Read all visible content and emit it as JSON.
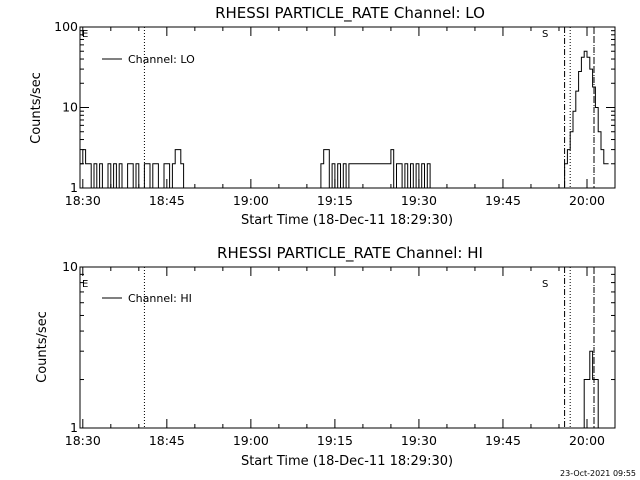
{
  "timestamp": "23-Oct-2021 09:55",
  "chart_data": [
    {
      "type": "line",
      "title": "RHESSI PARTICLE_RATE Channel: LO",
      "xlabel": "Start Time (18-Dec-11 18:29:30)",
      "ylabel": "Counts/sec",
      "y_scale": "log",
      "ylim": [
        1,
        100
      ],
      "yticks": [
        {
          "v": 1,
          "label": "1"
        },
        {
          "v": 10,
          "label": "10"
        },
        {
          "v": 100,
          "label": "100"
        }
      ],
      "xlim": [
        "18:29:30",
        "20:05:00"
      ],
      "xticks": [
        "18:30",
        "18:45",
        "19:00",
        "19:15",
        "19:30",
        "19:45",
        "20:00"
      ],
      "legend": "Channel: LO",
      "legend_position": "top-left",
      "left_marker": "E",
      "right_marker": "S",
      "vlines": [
        {
          "x": "18:41:00",
          "style": "dotted"
        },
        {
          "x": "19:56:00",
          "style": "dashdot"
        },
        {
          "x": "19:57:00",
          "style": "dotted"
        },
        {
          "x": "20:02:30",
          "style": "dashed"
        },
        {
          "x": "20:05:00",
          "style": "dotted"
        }
      ],
      "series": [
        {
          "x": [
            "18:29:30",
            "18:30:00",
            "18:30:30",
            "18:31:00",
            "18:31:30",
            "18:32:00",
            "18:32:30",
            "18:33:00",
            "18:33:30",
            "18:34:00",
            "18:34:30",
            "18:35:00",
            "18:35:30",
            "18:36:00",
            "18:36:30",
            "18:37:00",
            "18:37:30",
            "18:38:00",
            "18:38:30",
            "18:39:00",
            "18:39:30",
            "18:40:00",
            "18:40:30",
            "18:41:00",
            "18:41:30",
            "18:42:00",
            "18:42:30",
            "18:43:00",
            "18:43:30",
            "18:44:00",
            "18:44:30",
            "18:45:00",
            "18:45:30",
            "18:46:00",
            "18:46:30",
            "18:47:00",
            "18:47:30",
            "18:48:00",
            "19:12:00",
            "19:12:30",
            "19:13:00",
            "19:13:30",
            "19:14:00",
            "19:14:30",
            "19:15:00",
            "19:15:30",
            "19:16:00",
            "19:16:30",
            "19:17:00",
            "19:17:30",
            "19:18:00",
            "19:18:30",
            "19:19:00",
            "19:19:30",
            "19:23:00",
            "19:23:30",
            "19:24:00",
            "19:24:30",
            "19:25:00",
            "19:25:30",
            "19:26:00",
            "19:26:30",
            "19:27:00",
            "19:27:30",
            "19:28:00",
            "19:28:30",
            "19:29:00",
            "19:29:30",
            "19:30:00",
            "19:30:30",
            "19:31:00",
            "19:31:30",
            "19:32:00",
            "19:55:30",
            "19:56:00",
            "19:56:30",
            "19:57:00",
            "19:57:30",
            "19:58:00",
            "19:58:30",
            "19:59:00",
            "19:59:30",
            "20:00:00",
            "20:00:30",
            "20:01:00",
            "20:01:30",
            "20:02:00",
            "20:02:30",
            "20:03:00",
            "20:03:30"
          ],
          "values": [
            2,
            3,
            2,
            2,
            1,
            2,
            1,
            2,
            1,
            1,
            2,
            1,
            2,
            1,
            2,
            1,
            1,
            2,
            2,
            1,
            2,
            1,
            1,
            2,
            2,
            1,
            2,
            2,
            1,
            1,
            2,
            2,
            1,
            2,
            3,
            3,
            2,
            1,
            1,
            2,
            3,
            3,
            1,
            2,
            1,
            2,
            1,
            2,
            1,
            2,
            2,
            2,
            2,
            2,
            2,
            2,
            2,
            2,
            3,
            1,
            2,
            2,
            1,
            2,
            1,
            2,
            1,
            2,
            1,
            2,
            1,
            2,
            1,
            1,
            2,
            3,
            5,
            9,
            16,
            28,
            42,
            50,
            42,
            30,
            18,
            10,
            5,
            3,
            2,
            2
          ]
        }
      ]
    },
    {
      "type": "line",
      "title": "RHESSI PARTICLE_RATE Channel: HI",
      "xlabel": "Start Time (18-Dec-11 18:29:30)",
      "ylabel": "Counts/sec",
      "y_scale": "log",
      "ylim": [
        1,
        10
      ],
      "yticks": [
        {
          "v": 1,
          "label": "1"
        },
        {
          "v": 10,
          "label": "10"
        }
      ],
      "xlim": [
        "18:29:30",
        "20:05:00"
      ],
      "xticks": [
        "18:30",
        "18:45",
        "19:00",
        "19:15",
        "19:30",
        "19:45",
        "20:00"
      ],
      "legend": "Channel: HI",
      "legend_position": "top-left",
      "left_marker": "E",
      "right_marker": "S",
      "vlines": [
        {
          "x": "18:41:00",
          "style": "dotted"
        },
        {
          "x": "19:56:00",
          "style": "dashdot"
        },
        {
          "x": "19:57:00",
          "style": "dotted"
        },
        {
          "x": "20:02:30",
          "style": "dashed"
        },
        {
          "x": "20:05:00",
          "style": "dotted"
        }
      ],
      "series": [
        {
          "x": [
            "19:59:00",
            "19:59:30",
            "20:00:00",
            "20:00:30",
            "20:01:00",
            "20:01:30",
            "20:02:00"
          ],
          "values": [
            1,
            2,
            2,
            3,
            2,
            2,
            1
          ]
        }
      ]
    }
  ]
}
